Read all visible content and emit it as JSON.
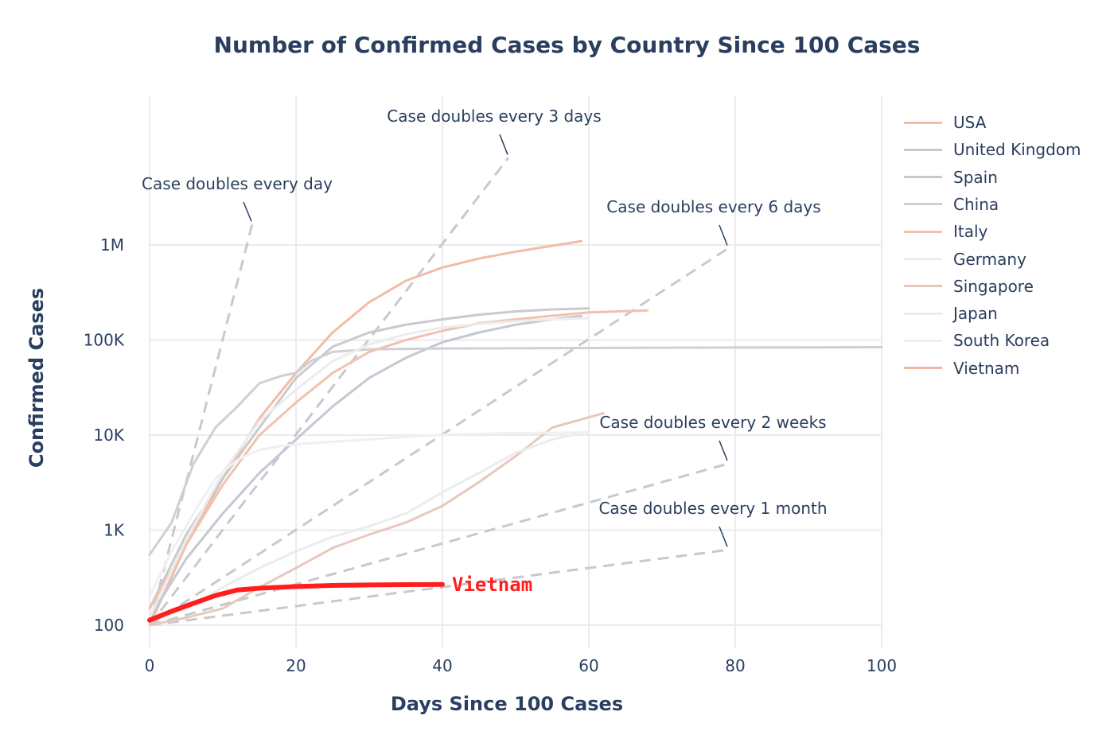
{
  "chart_data": {
    "type": "line",
    "title": "Number of Confirmed Cases by Country Since 100 Cases",
    "xlabel": "Days Since 100 Cases",
    "ylabel": "Confirmed Cases",
    "xlim": [
      0,
      100
    ],
    "ylim": [
      100,
      3000000
    ],
    "yscale": "log",
    "x_ticks": [
      "0",
      "20",
      "40",
      "60",
      "80",
      "100"
    ],
    "y_ticks": [
      {
        "value": 100,
        "label": "100"
      },
      {
        "value": 1000,
        "label": "1K"
      },
      {
        "value": 10000,
        "label": "10K"
      },
      {
        "value": 100000,
        "label": "100K"
      },
      {
        "value": 1000000,
        "label": "1M"
      }
    ],
    "grid": true,
    "legend_position": "right",
    "series": [
      {
        "name": "USA",
        "color": "#f2bca6",
        "x": [
          0,
          5,
          10,
          15,
          20,
          25,
          30,
          35,
          40,
          45,
          50,
          55,
          59
        ],
        "y": [
          100,
          700,
          3500,
          15000,
          45000,
          120000,
          250000,
          420000,
          580000,
          720000,
          850000,
          980000,
          1100000
        ]
      },
      {
        "name": "United Kingdom",
        "color": "#c3c8d2",
        "x": [
          0,
          5,
          10,
          15,
          20,
          25,
          30,
          35,
          40,
          45,
          50,
          55,
          59
        ],
        "y": [
          120,
          500,
          1500,
          4000,
          9000,
          20000,
          40000,
          65000,
          95000,
          120000,
          145000,
          165000,
          180000
        ]
      },
      {
        "name": "Spain",
        "color": "#c9cacd",
        "x": [
          0,
          5,
          10,
          15,
          20,
          25,
          30,
          35,
          40,
          45,
          50,
          55,
          60
        ],
        "y": [
          150,
          900,
          3500,
          12000,
          40000,
          85000,
          120000,
          145000,
          165000,
          185000,
          200000,
          210000,
          215000
        ]
      },
      {
        "name": "China",
        "color": "#cfd0d4",
        "x": [
          0,
          3,
          6,
          9,
          12,
          15,
          18,
          20,
          22,
          25,
          30,
          40,
          60,
          80,
          100
        ],
        "y": [
          550,
          1200,
          5000,
          12000,
          20000,
          35000,
          42000,
          45000,
          60000,
          75000,
          80000,
          81500,
          82500,
          83500,
          84000
        ]
      },
      {
        "name": "Italy",
        "color": "#f1c2b0",
        "x": [
          0,
          5,
          10,
          15,
          20,
          25,
          30,
          35,
          40,
          45,
          50,
          55,
          60,
          68
        ],
        "y": [
          150,
          700,
          3000,
          10000,
          22000,
          45000,
          75000,
          100000,
          125000,
          150000,
          165000,
          180000,
          195000,
          205000
        ]
      },
      {
        "name": "Germany",
        "color": "#ebecee",
        "x": [
          0,
          5,
          10,
          15,
          20,
          25,
          30,
          35,
          40,
          45,
          50,
          55,
          60
        ],
        "y": [
          120,
          800,
          4000,
          14000,
          30000,
          60000,
          90000,
          115000,
          135000,
          148000,
          158000,
          165000,
          170000
        ]
      },
      {
        "name": "Singapore",
        "color": "#e7c8bd",
        "x": [
          0,
          5,
          10,
          15,
          20,
          25,
          30,
          35,
          40,
          45,
          50,
          55,
          62
        ],
        "y": [
          100,
          120,
          150,
          250,
          400,
          650,
          900,
          1200,
          1800,
          3200,
          6000,
          12000,
          17000
        ]
      },
      {
        "name": "Japan",
        "color": "#ececec",
        "x": [
          0,
          5,
          10,
          15,
          20,
          25,
          30,
          35,
          40,
          45,
          50,
          55,
          60
        ],
        "y": [
          110,
          150,
          250,
          400,
          600,
          850,
          1100,
          1500,
          2500,
          4000,
          6500,
          9000,
          11000
        ]
      },
      {
        "name": "South Korea",
        "color": "#f0f0f2",
        "x": [
          0,
          3,
          6,
          9,
          12,
          15,
          18,
          21,
          25,
          30,
          35,
          40,
          50,
          60
        ],
        "y": [
          200,
          600,
          1500,
          3500,
          5500,
          7000,
          7700,
          8100,
          8500,
          9000,
          9600,
          10100,
          10500,
          10700
        ]
      },
      {
        "name": "Vietnam",
        "color": "#f5b4a3",
        "x": [
          0,
          3,
          6,
          9,
          12,
          15,
          20,
          25,
          30,
          35,
          40
        ],
        "y": [
          113,
          140,
          170,
          205,
          235,
          245,
          255,
          262,
          265,
          267,
          268
        ]
      }
    ],
    "highlight": {
      "name": "Vietnam",
      "label": "Vietnam",
      "color": "#ff1e1e",
      "x": [
        0,
        3,
        6,
        9,
        12,
        15,
        20,
        25,
        30,
        35,
        40
      ],
      "y": [
        113,
        140,
        170,
        205,
        235,
        245,
        255,
        262,
        265,
        267,
        268
      ]
    },
    "reference_lines": [
      {
        "label": "Case doubles every day",
        "days": 1,
        "x": [
          0,
          14
        ]
      },
      {
        "label": "Case doubles every 3 days",
        "days": 3,
        "x": [
          0,
          49
        ]
      },
      {
        "label": "Case doubles every 6 days",
        "days": 6,
        "x": [
          0,
          79
        ]
      },
      {
        "label": "Case doubles every 2 weeks",
        "days": 14,
        "x": [
          0,
          79
        ]
      },
      {
        "label": "Case doubles every 1 month",
        "days": 30,
        "x": [
          0,
          79
        ]
      }
    ]
  }
}
